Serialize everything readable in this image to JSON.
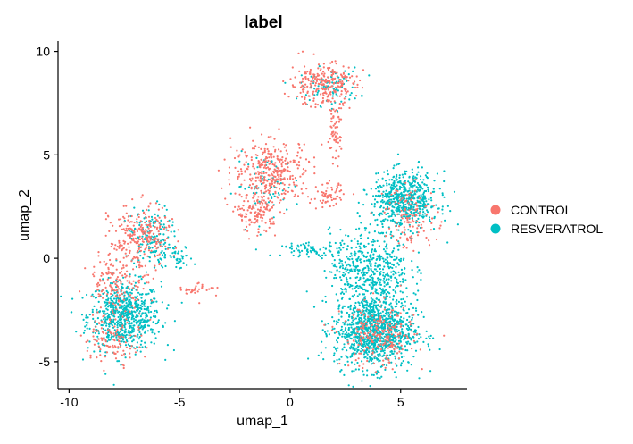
{
  "chart_data": {
    "type": "scatter",
    "title": "label",
    "xlabel": "umap_1",
    "ylabel": "umap_2",
    "xlim": [
      -10.5,
      8
    ],
    "ylim": [
      -6.3,
      10.5
    ],
    "xticks": [
      -10,
      -5,
      0,
      5
    ],
    "xtick_labels": [
      "-10",
      "-5",
      "0",
      "5"
    ],
    "yticks": [
      -5,
      0,
      5,
      10
    ],
    "ytick_labels": [
      "-5",
      "0",
      "5",
      "10"
    ],
    "grid": false,
    "legend_position": "right",
    "series": [
      {
        "name": "CONTROL",
        "color": "#F8766D",
        "clusters": [
          {
            "cx": -6.8,
            "cy": 1.0,
            "sx": 0.9,
            "sy": 1.0,
            "n": 260
          },
          {
            "cx": -7.8,
            "cy": -1.2,
            "sx": 0.9,
            "sy": 0.8,
            "n": 140
          },
          {
            "cx": -8.0,
            "cy": -3.8,
            "sx": 0.9,
            "sy": 0.8,
            "n": 120
          },
          {
            "cx": -4.2,
            "cy": -1.5,
            "sx": 0.6,
            "sy": 0.3,
            "n": 30
          },
          {
            "cx": 1.5,
            "cy": 8.4,
            "sx": 1.0,
            "sy": 0.7,
            "n": 260
          },
          {
            "cx": 2.0,
            "cy": 6.0,
            "sx": 0.2,
            "sy": 0.8,
            "n": 60
          },
          {
            "cx": -0.8,
            "cy": 4.2,
            "sx": 1.2,
            "sy": 1.0,
            "n": 340
          },
          {
            "cx": -1.5,
            "cy": 2.2,
            "sx": 0.6,
            "sy": 0.6,
            "n": 130
          },
          {
            "cx": 1.8,
            "cy": 3.0,
            "sx": 0.4,
            "sy": 0.4,
            "n": 60
          },
          {
            "cx": 4.0,
            "cy": -3.8,
            "sx": 1.1,
            "sy": 1.0,
            "n": 220
          },
          {
            "cx": 5.5,
            "cy": 2.0,
            "sx": 0.8,
            "sy": 1.0,
            "n": 120
          }
        ]
      },
      {
        "name": "RESVERATROL",
        "color": "#00BFC4",
        "clusters": [
          {
            "cx": -7.5,
            "cy": -2.8,
            "sx": 1.1,
            "sy": 1.1,
            "n": 700
          },
          {
            "cx": -6.3,
            "cy": 1.0,
            "sx": 0.6,
            "sy": 1.0,
            "n": 160
          },
          {
            "cx": -5.0,
            "cy": 0.0,
            "sx": 0.4,
            "sy": 0.4,
            "n": 40
          },
          {
            "cx": 1.8,
            "cy": 8.3,
            "sx": 0.9,
            "sy": 0.6,
            "n": 90
          },
          {
            "cx": -1.0,
            "cy": 3.5,
            "sx": 1.0,
            "sy": 1.0,
            "n": 70
          },
          {
            "cx": 1.0,
            "cy": 0.4,
            "sx": 0.9,
            "sy": 0.2,
            "n": 70
          },
          {
            "cx": 3.8,
            "cy": -3.5,
            "sx": 1.2,
            "sy": 1.2,
            "n": 1100
          },
          {
            "cx": 3.6,
            "cy": -0.5,
            "sx": 1.2,
            "sy": 1.2,
            "n": 500
          },
          {
            "cx": 5.2,
            "cy": 2.8,
            "sx": 1.0,
            "sy": 0.9,
            "n": 600
          }
        ]
      }
    ]
  }
}
